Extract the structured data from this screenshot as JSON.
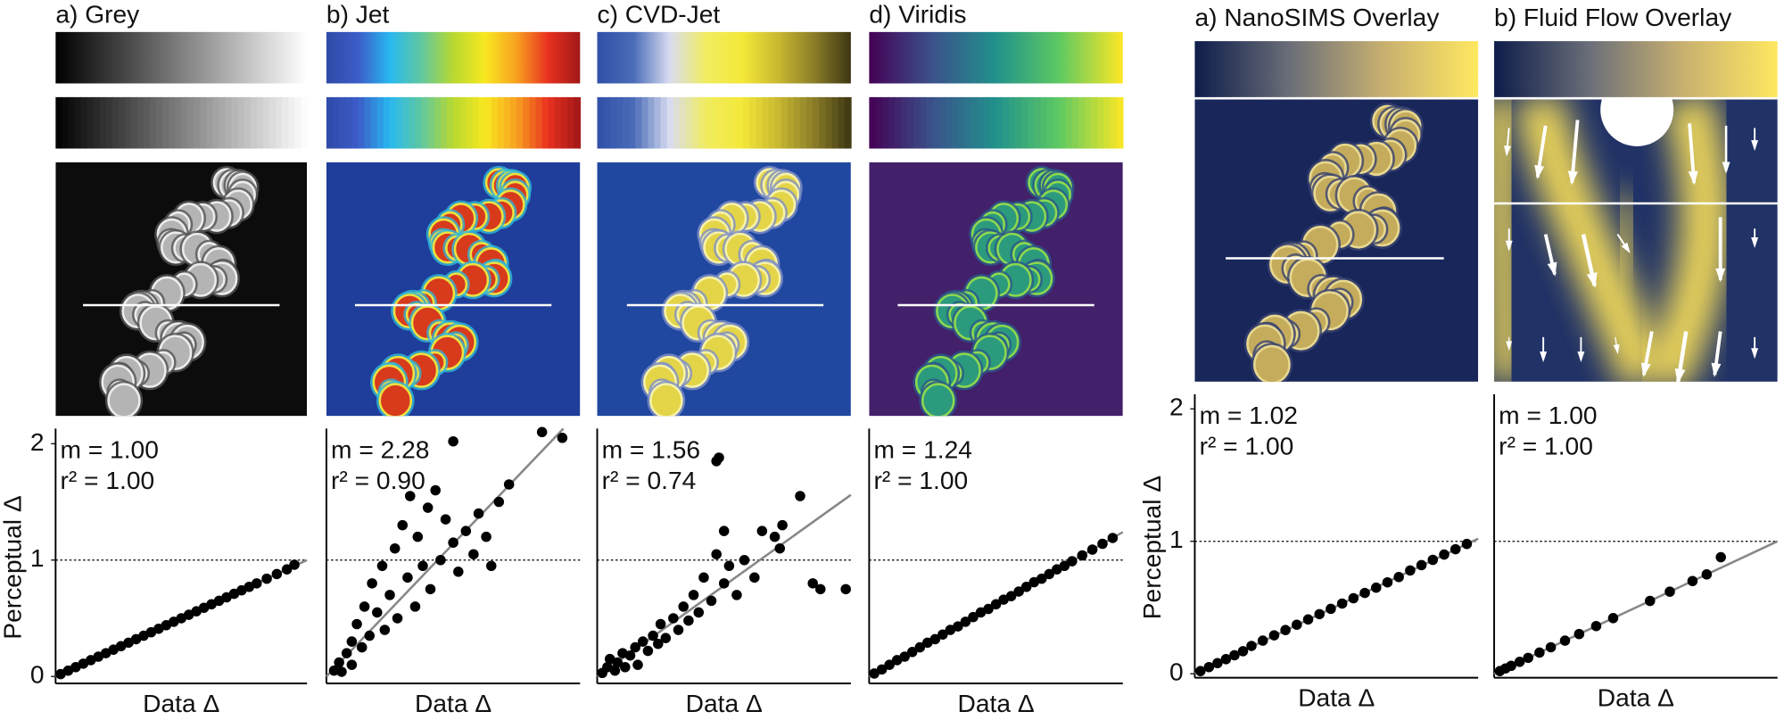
{
  "chart_data": [
    {
      "type": "scatter",
      "title": "a) Grey",
      "xlabel": "Data Δ",
      "ylabel": "Perceptual Δ",
      "xlim": [
        0,
        1
      ],
      "ylim": [
        -0.06,
        2.13
      ],
      "yticks": [
        0,
        1,
        2
      ],
      "reference_line": 1,
      "fit": {
        "slope": 1.0,
        "label": "m = 1.00"
      },
      "r2_label": "r² = 1.00",
      "color": "#000000",
      "x": [
        0.02,
        0.05,
        0.08,
        0.11,
        0.14,
        0.17,
        0.2,
        0.23,
        0.26,
        0.29,
        0.32,
        0.35,
        0.38,
        0.41,
        0.44,
        0.47,
        0.5,
        0.53,
        0.56,
        0.59,
        0.62,
        0.65,
        0.68,
        0.71,
        0.74,
        0.77,
        0.8,
        0.84,
        0.88,
        0.92,
        0.95
      ],
      "values": [
        0.02,
        0.05,
        0.08,
        0.11,
        0.14,
        0.17,
        0.2,
        0.23,
        0.26,
        0.29,
        0.32,
        0.35,
        0.38,
        0.41,
        0.44,
        0.47,
        0.5,
        0.53,
        0.56,
        0.59,
        0.62,
        0.65,
        0.68,
        0.71,
        0.74,
        0.77,
        0.8,
        0.84,
        0.88,
        0.92,
        0.96
      ]
    },
    {
      "type": "scatter",
      "title": "b) Jet",
      "xlabel": "Data Δ",
      "xlim": [
        0,
        1
      ],
      "ylim": [
        -0.06,
        2.13
      ],
      "reference_line": 1,
      "fit": {
        "slope": 2.28,
        "label": "m = 2.28"
      },
      "r2_label": "r² = 0.90",
      "color": "#000000",
      "x": [
        0.03,
        0.05,
        0.06,
        0.08,
        0.1,
        0.1,
        0.12,
        0.14,
        0.15,
        0.17,
        0.18,
        0.2,
        0.22,
        0.23,
        0.25,
        0.27,
        0.28,
        0.3,
        0.32,
        0.33,
        0.35,
        0.36,
        0.38,
        0.4,
        0.41,
        0.43,
        0.45,
        0.47,
        0.5,
        0.52,
        0.55,
        0.58,
        0.6,
        0.63,
        0.65,
        0.68,
        0.72,
        0.85,
        0.5,
        0.93
      ],
      "values": [
        0.05,
        0.12,
        0.04,
        0.2,
        0.3,
        0.1,
        0.45,
        0.25,
        0.6,
        0.35,
        0.8,
        0.55,
        0.95,
        0.4,
        0.7,
        1.1,
        0.5,
        1.3,
        0.85,
        1.55,
        0.6,
        1.2,
        0.95,
        1.45,
        0.75,
        1.6,
        1.0,
        1.35,
        1.15,
        0.9,
        1.25,
        1.05,
        1.4,
        1.2,
        0.95,
        1.5,
        1.65,
        2.1,
        2.02,
        2.05
      ]
    },
    {
      "type": "scatter",
      "title": "c) CVD-Jet",
      "xlabel": "Data Δ",
      "xlim": [
        0,
        1
      ],
      "ylim": [
        -0.06,
        2.13
      ],
      "reference_line": 1,
      "fit": {
        "slope": 1.56,
        "label": "m = 1.56"
      },
      "r2_label": "r² = 0.74",
      "color": "#000000",
      "x": [
        0.02,
        0.04,
        0.05,
        0.07,
        0.08,
        0.1,
        0.11,
        0.13,
        0.15,
        0.16,
        0.18,
        0.2,
        0.22,
        0.24,
        0.25,
        0.27,
        0.3,
        0.32,
        0.34,
        0.36,
        0.38,
        0.4,
        0.42,
        0.45,
        0.47,
        0.5,
        0.52,
        0.55,
        0.58,
        0.62,
        0.65,
        0.5,
        0.47,
        0.48,
        0.72,
        0.73,
        0.85,
        0.88,
        0.98,
        0.8,
        0.7
      ],
      "values": [
        0.03,
        0.08,
        0.15,
        0.05,
        0.12,
        0.2,
        0.08,
        0.18,
        0.25,
        0.1,
        0.3,
        0.22,
        0.35,
        0.28,
        0.45,
        0.33,
        0.5,
        0.4,
        0.6,
        0.48,
        0.7,
        0.55,
        0.85,
        0.65,
        1.05,
        0.8,
        0.95,
        0.7,
        1.0,
        0.85,
        1.25,
        1.25,
        1.85,
        1.88,
        1.1,
        1.3,
        0.8,
        0.75,
        0.75,
        1.55,
        1.2
      ]
    },
    {
      "type": "scatter",
      "title": "d) Viridis",
      "xlabel": "Data Δ",
      "xlim": [
        0,
        1
      ],
      "ylim": [
        -0.06,
        2.13
      ],
      "reference_line": 1,
      "fit": {
        "slope": 1.24,
        "label": "m = 1.24"
      },
      "r2_label": "r² = 1.00",
      "color": "#000000",
      "x": [
        0.02,
        0.05,
        0.08,
        0.11,
        0.14,
        0.17,
        0.2,
        0.23,
        0.26,
        0.29,
        0.32,
        0.35,
        0.38,
        0.41,
        0.44,
        0.47,
        0.5,
        0.53,
        0.56,
        0.59,
        0.62,
        0.65,
        0.68,
        0.71,
        0.74,
        0.77,
        0.8,
        0.84,
        0.88,
        0.92,
        0.96
      ],
      "values": [
        0.025,
        0.06,
        0.1,
        0.14,
        0.17,
        0.21,
        0.25,
        0.29,
        0.32,
        0.36,
        0.4,
        0.43,
        0.47,
        0.51,
        0.55,
        0.58,
        0.62,
        0.66,
        0.69,
        0.73,
        0.77,
        0.81,
        0.84,
        0.88,
        0.92,
        0.95,
        0.99,
        1.04,
        1.09,
        1.14,
        1.19
      ]
    },
    {
      "type": "scatter",
      "title": "a) NanoSIMS Overlay",
      "xlabel": "Data Δ",
      "ylabel": "Perceptual Δ",
      "xlim": [
        0,
        1
      ],
      "ylim": [
        -0.03,
        2.11
      ],
      "yticks": [
        0,
        1,
        2
      ],
      "reference_line": 1,
      "fit": {
        "slope": 1.02,
        "label": "m = 1.02"
      },
      "r2_label": "r² = 1.00",
      "color": "#000000",
      "x": [
        0.02,
        0.05,
        0.08,
        0.11,
        0.14,
        0.17,
        0.2,
        0.24,
        0.28,
        0.32,
        0.36,
        0.4,
        0.44,
        0.48,
        0.52,
        0.56,
        0.6,
        0.64,
        0.68,
        0.72,
        0.76,
        0.8,
        0.84,
        0.88,
        0.92,
        0.96
      ],
      "values": [
        0.02,
        0.05,
        0.08,
        0.11,
        0.14,
        0.17,
        0.21,
        0.25,
        0.29,
        0.33,
        0.37,
        0.41,
        0.45,
        0.49,
        0.53,
        0.57,
        0.61,
        0.65,
        0.69,
        0.73,
        0.78,
        0.82,
        0.86,
        0.9,
        0.94,
        0.98
      ]
    },
    {
      "type": "scatter",
      "title": "b) Fluid Flow Overlay",
      "xlabel": "Data Δ",
      "xlim": [
        0,
        1
      ],
      "ylim": [
        -0.03,
        2.11
      ],
      "reference_line": 1,
      "fit": {
        "slope": 1.0,
        "label": "m = 1.00"
      },
      "r2_label": "r² = 1.00",
      "color": "#000000",
      "x": [
        0.02,
        0.04,
        0.06,
        0.09,
        0.12,
        0.16,
        0.2,
        0.25,
        0.3,
        0.36,
        0.42,
        0.55,
        0.62,
        0.7,
        0.75,
        0.8
      ],
      "values": [
        0.02,
        0.04,
        0.06,
        0.09,
        0.12,
        0.16,
        0.2,
        0.25,
        0.3,
        0.36,
        0.42,
        0.55,
        0.62,
        0.7,
        0.75,
        0.88
      ]
    }
  ]
}
